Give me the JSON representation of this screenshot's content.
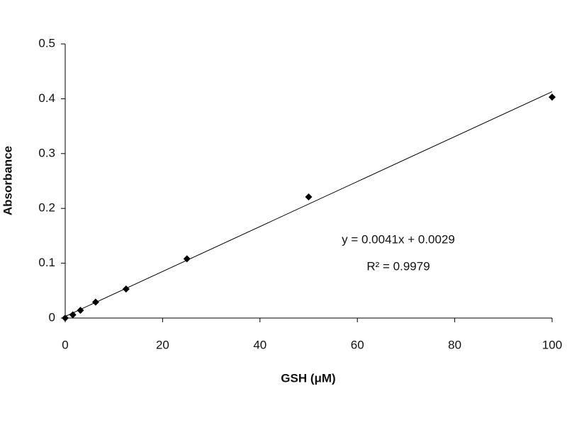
{
  "chart_data": {
    "type": "scatter",
    "x_label": "GSH (μM)",
    "y_label": "Absorbance",
    "x": [
      0,
      1.5625,
      3.125,
      6.25,
      12.5,
      25,
      50,
      100
    ],
    "values": [
      0,
      0.006,
      0.014,
      0.029,
      0.053,
      0.108,
      0.221,
      0.403
    ],
    "color": "#000000",
    "xlim": [
      0,
      100
    ],
    "xticks": [
      0,
      20,
      40,
      60,
      80,
      100
    ],
    "ylim": [
      0,
      0.5
    ],
    "yticks": [
      0,
      0.1,
      0.2,
      0.3,
      0.4,
      0.5
    ],
    "trendline": {
      "slope": 0.0041,
      "intercept": 0.0029
    },
    "annotations": [
      "y = 0.0041x + 0.0029",
      "R² = 0.9979"
    ]
  }
}
